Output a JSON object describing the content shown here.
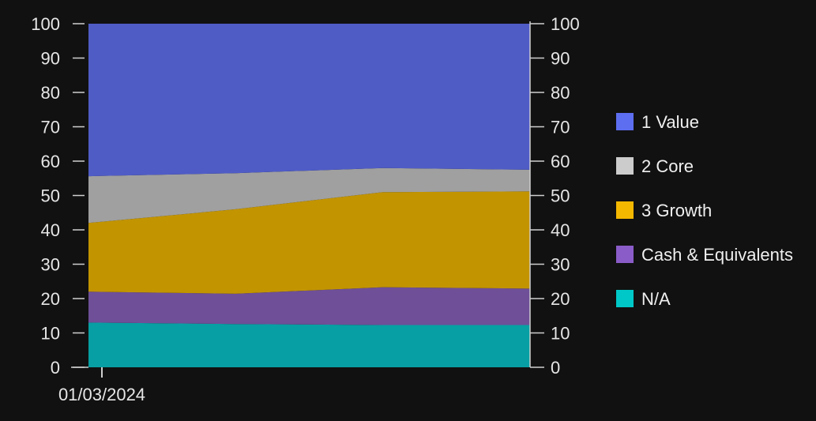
{
  "chart_data": {
    "type": "area",
    "stacked": true,
    "title": "",
    "xlabel": "",
    "ylabel": "",
    "ylim": [
      0,
      100
    ],
    "yticks": [
      0,
      10,
      20,
      30,
      40,
      50,
      60,
      70,
      80,
      90,
      100
    ],
    "y_axis_sides": [
      "left",
      "right"
    ],
    "x_tick_labels": [
      "01/03/2024"
    ],
    "grid": false,
    "legend_position": "right",
    "series": [
      {
        "name": "N/A",
        "color": "#00c8c8",
        "fill": "#079fa3",
        "values": [
          13.0,
          12.6,
          12.3,
          12.3
        ]
      },
      {
        "name": "Cash & Equivalents",
        "color": "#8a5cc8",
        "fill": "#6e4f98",
        "values": [
          9.0,
          8.8,
          11.0,
          10.6
        ]
      },
      {
        "name": "3 Growth",
        "color": "#f5b800",
        "fill": "#c29400",
        "values": [
          20.0,
          24.6,
          27.7,
          28.3
        ]
      },
      {
        "name": "2 Core",
        "color": "#cccccc",
        "fill": "#a0a0a0",
        "values": [
          13.6,
          10.5,
          7.0,
          6.3
        ]
      },
      {
        "name": "1 Value",
        "color": "#5d6ef0",
        "fill": "#4f5cc6",
        "values": [
          44.4,
          43.5,
          42.0,
          42.5
        ]
      }
    ],
    "legend_order": [
      "1 Value",
      "2 Core",
      "3 Growth",
      "Cash & Equivalents",
      "N/A"
    ]
  }
}
